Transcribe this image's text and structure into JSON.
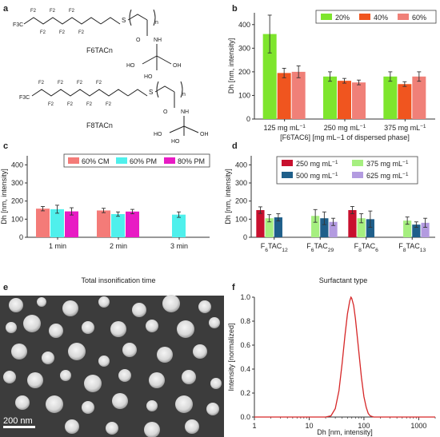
{
  "panel_letters": {
    "a": "a",
    "b": "b",
    "c": "c",
    "d": "d",
    "e": "e",
    "f": "f"
  },
  "panel_a": {
    "structure_1": "F6TACn",
    "structure_2": "F8TACn",
    "atom_labels": {
      "F": "F",
      "F2": "F2",
      "F3C": "F3C",
      "S": "S",
      "O": "O",
      "NH": "NH",
      "HO": "HO",
      "OH": "OH",
      "n": "n"
    }
  },
  "panel_e": {
    "scale_bar_label": "200 nm"
  },
  "chart_data": [
    {
      "id": "b",
      "type": "bar",
      "categories": [
        "125 mg mL",
        "250 mg mL",
        "375 mg mL"
      ],
      "category_superscript": "−1",
      "xlabel": "[F6TAC6] [mg mL−1 of dispersed phase]",
      "ylabel": "Dh [nm, intensity]",
      "ylim": [
        0,
        450
      ],
      "yticks": [
        "0",
        "100",
        "200",
        "300",
        "400"
      ],
      "legend_position": "top-right",
      "series": [
        {
          "name": "20%",
          "color": "#7ee52d",
          "values": [
            360,
            180,
            180
          ],
          "errors": [
            80,
            20,
            20
          ]
        },
        {
          "name": "40%",
          "color": "#f0551f",
          "values": [
            195,
            162,
            148
          ],
          "errors": [
            20,
            10,
            10
          ]
        },
        {
          "name": "60%",
          "color": "#f08078",
          "values": [
            200,
            155,
            180
          ],
          "errors": [
            25,
            10,
            20
          ]
        }
      ]
    },
    {
      "id": "c",
      "type": "bar",
      "categories": [
        "1 min",
        "2 min",
        "3 min"
      ],
      "xlabel": "Total insonification time",
      "ylabel": "Dh [nm, intensity]",
      "ylim": [
        0,
        450
      ],
      "yticks": [
        "0",
        "100",
        "200",
        "300",
        "400"
      ],
      "legend_position": "top-right",
      "series": [
        {
          "name": "60% CM",
          "color": "#f47b78",
          "values": [
            158,
            148,
            null
          ],
          "errors": [
            12,
            12,
            null
          ]
        },
        {
          "name": "60% PM",
          "color": "#4ff0ec",
          "values": [
            155,
            128,
            125
          ],
          "errors": [
            22,
            12,
            15
          ]
        },
        {
          "name": "80% PM",
          "color": "#e81bc4",
          "values": [
            143,
            142,
            null
          ],
          "errors": [
            20,
            12,
            null
          ]
        }
      ]
    },
    {
      "id": "d",
      "type": "bar",
      "categories": [
        "F6TAC12",
        "F6TAC29",
        "F8TAC6",
        "F8TAC13"
      ],
      "xlabel": "Surfactant type",
      "ylabel": "Dh [nm, intensity]",
      "ylim": [
        0,
        450
      ],
      "yticks": [
        "0",
        "100",
        "200",
        "300",
        "400"
      ],
      "legend_position": "top-right",
      "series": [
        {
          "name": "250 mg mL",
          "color": "#c8102e",
          "values": [
            150,
            null,
            150,
            null
          ],
          "errors": [
            18,
            null,
            20,
            null
          ]
        },
        {
          "name": "375 mg mL",
          "color": "#a6ef80",
          "values": [
            105,
            118,
            105,
            92
          ],
          "errors": [
            20,
            35,
            25,
            20
          ]
        },
        {
          "name": "500 mg mL",
          "color": "#1f5f8a",
          "values": [
            110,
            105,
            100,
            70
          ],
          "errors": [
            20,
            35,
            45,
            15
          ]
        },
        {
          "name": "625 mg mL",
          "color": "#b39be0",
          "values": [
            null,
            85,
            null,
            80
          ],
          "errors": [
            null,
            20,
            null,
            25
          ]
        }
      ],
      "legend_superscript": "−1"
    },
    {
      "id": "f",
      "type": "line",
      "xscale": "log",
      "xlim": [
        1,
        2000
      ],
      "ylim": [
        0,
        1.0
      ],
      "xticks": [
        "1",
        "10",
        "100",
        "1000"
      ],
      "yticks": [
        "0.0",
        "0.2",
        "0.4",
        "0.6",
        "0.8",
        "1.0"
      ],
      "xlabel": "Dh [nm, intensity]",
      "ylabel": "Intensity [normalized]",
      "line_color": "#d62728",
      "grid": false,
      "series": [
        {
          "x": [
            1,
            20,
            25,
            30,
            35,
            40,
            45,
            50,
            55,
            58,
            60,
            65,
            70,
            80,
            90,
            100,
            110,
            120,
            130,
            150,
            200,
            2000
          ],
          "y": [
            0,
            0,
            0.01,
            0.07,
            0.22,
            0.45,
            0.68,
            0.86,
            0.97,
            1.0,
            0.99,
            0.93,
            0.82,
            0.56,
            0.33,
            0.17,
            0.08,
            0.03,
            0.01,
            0,
            0,
            0
          ]
        }
      ]
    }
  ]
}
